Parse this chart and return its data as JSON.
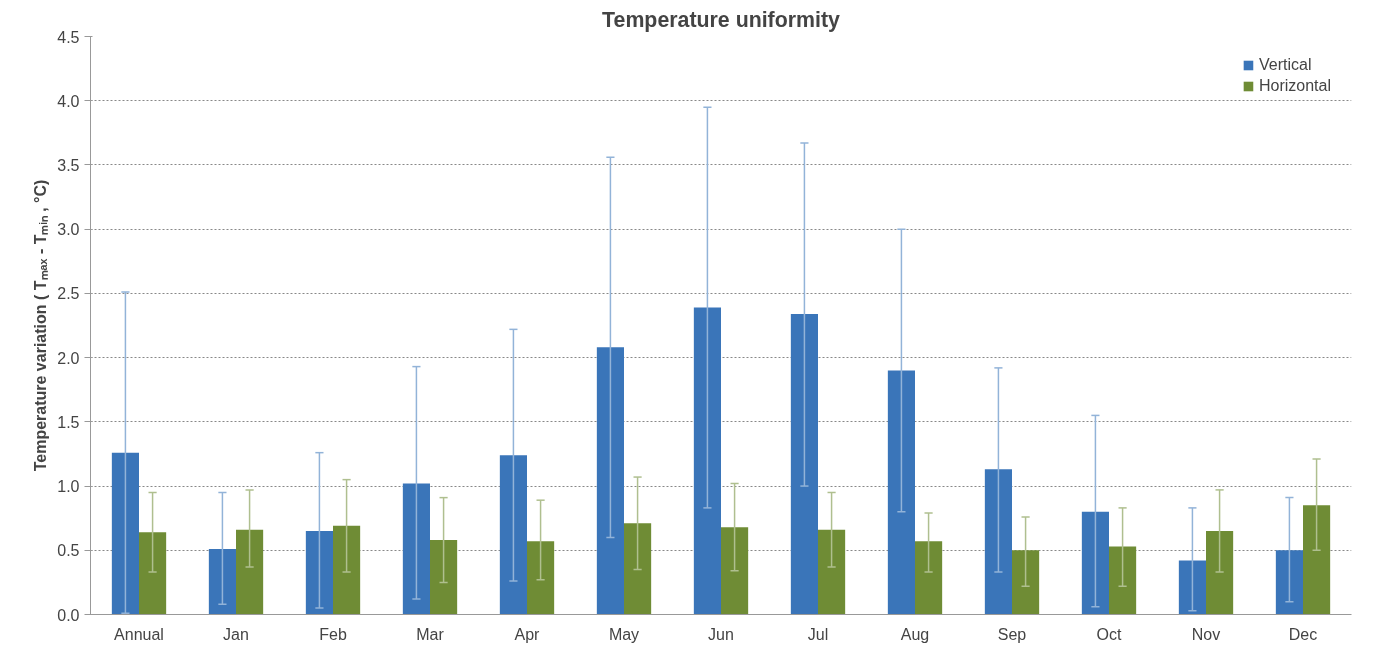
{
  "chart_data": {
    "type": "bar",
    "title": "Temperature uniformity",
    "ylabel": "Temperature variation ( Tₘₐₓ - Tₘᵢₙ , °C)",
    "categories": [
      "Annual",
      "Jan",
      "Feb",
      "Mar",
      "Apr",
      "May",
      "Jun",
      "Jul",
      "Aug",
      "Sep",
      "Oct",
      "Nov",
      "Dec"
    ],
    "series": [
      {
        "name": "Vertical",
        "color": "#3a75b9",
        "values": [
          1.26,
          0.51,
          0.65,
          1.02,
          1.24,
          2.08,
          2.39,
          2.34,
          1.9,
          1.13,
          0.8,
          0.42,
          0.5
        ],
        "errors": [
          [
            0.01,
            2.51
          ],
          [
            0.08,
            0.95
          ],
          [
            0.05,
            1.26
          ],
          [
            0.12,
            1.93
          ],
          [
            0.26,
            2.22
          ],
          [
            0.6,
            3.56
          ],
          [
            0.83,
            3.95
          ],
          [
            1.0,
            3.67
          ],
          [
            0.8,
            3.0
          ],
          [
            0.33,
            1.92
          ],
          [
            0.06,
            1.55
          ],
          [
            0.03,
            0.83
          ],
          [
            0.1,
            0.91
          ]
        ]
      },
      {
        "name": "Horizontal",
        "color": "#6f8c35",
        "values": [
          0.64,
          0.66,
          0.69,
          0.58,
          0.57,
          0.71,
          0.68,
          0.66,
          0.57,
          0.5,
          0.53,
          0.65,
          0.85
        ],
        "errors": [
          [
            0.33,
            0.95
          ],
          [
            0.37,
            0.97
          ],
          [
            0.33,
            1.05
          ],
          [
            0.25,
            0.91
          ],
          [
            0.27,
            0.89
          ],
          [
            0.35,
            1.07
          ],
          [
            0.34,
            1.02
          ],
          [
            0.37,
            0.95
          ],
          [
            0.33,
            0.79
          ],
          [
            0.22,
            0.76
          ],
          [
            0.22,
            0.83
          ],
          [
            0.33,
            0.97
          ],
          [
            0.5,
            1.21
          ]
        ]
      }
    ],
    "ylim": [
      0,
      4.5
    ],
    "yticks": [
      {
        "value": 0,
        "label": "0.0"
      },
      {
        "value": 0.5,
        "label": "0.5"
      },
      {
        "value": 1,
        "label": "1.0"
      },
      {
        "value": 1.5,
        "label": "1.5"
      },
      {
        "value": 2,
        "label": "2.0"
      },
      {
        "value": 2.5,
        "label": "2.5"
      },
      {
        "value": 3,
        "label": "3.0"
      },
      {
        "value": 3.5,
        "label": "3.5"
      },
      {
        "value": 4,
        "label": "4.0"
      },
      {
        "value": 4.5,
        "label": "4.5"
      }
    ],
    "grid": "y",
    "legend": "top right"
  }
}
